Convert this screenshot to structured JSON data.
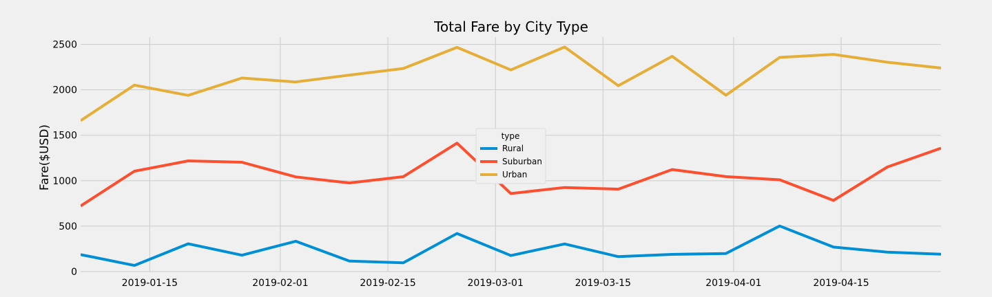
{
  "chart_data": {
    "type": "line",
    "title": "Total Fare by City Type",
    "xlabel": "",
    "ylabel": "Fare($USD)",
    "x": [
      "2019-01-06",
      "2019-01-13",
      "2019-01-20",
      "2019-01-27",
      "2019-02-03",
      "2019-02-10",
      "2019-02-17",
      "2019-02-24",
      "2019-03-03",
      "2019-03-10",
      "2019-03-17",
      "2019-03-24",
      "2019-03-31",
      "2019-04-07",
      "2019-04-14",
      "2019-04-21",
      "2019-04-28"
    ],
    "xticks": [
      {
        "date": "2019-01-15",
        "label": "2019-01-15"
      },
      {
        "date": "2019-02-01",
        "label": "2019-02-01"
      },
      {
        "date": "2019-02-15",
        "label": "2019-02-15"
      },
      {
        "date": "2019-03-01",
        "label": "2019-03-01"
      },
      {
        "date": "2019-03-15",
        "label": "2019-03-15"
      },
      {
        "date": "2019-04-01",
        "label": "2019-04-01"
      },
      {
        "date": "2019-04-15",
        "label": "2019-04-15"
      }
    ],
    "xlim": [
      "2019-01-06",
      "2019-04-28"
    ],
    "ylim": [
      0,
      2580
    ],
    "yticks": [
      0,
      500,
      1000,
      1500,
      2000,
      2500
    ],
    "grid": true,
    "legend": {
      "title": "type",
      "position": "center"
    },
    "series": [
      {
        "name": "Rural",
        "color": "#008fd5",
        "values": [
          187,
          67,
          306,
          180,
          334,
          116,
          96,
          419,
          176,
          304,
          164,
          189,
          199,
          502,
          269,
          214,
          191
        ]
      },
      {
        "name": "Suburban",
        "color": "#fc4f30",
        "values": [
          722,
          1105,
          1218,
          1203,
          1042,
          975,
          1044,
          1413,
          859,
          925,
          907,
          1123,
          1045,
          1010,
          783,
          1150,
          1358
        ]
      },
      {
        "name": "Urban",
        "color": "#e5ae38",
        "values": [
          1661,
          2052,
          1939,
          2130,
          2087,
          2162,
          2235,
          2467,
          2219,
          2471,
          2046,
          2369,
          1941,
          2357,
          2390,
          2304,
          2240
        ]
      }
    ]
  }
}
